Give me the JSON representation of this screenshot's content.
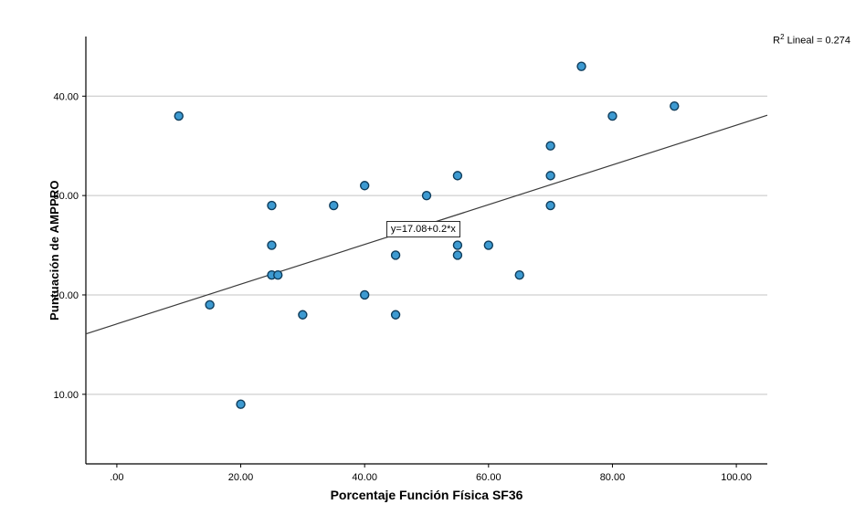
{
  "chart_data": {
    "type": "scatter",
    "title": "",
    "xlabel": "Porcentaje Función Física SF36",
    "ylabel": "Puntuación de AMPPRO",
    "xlim": [
      -5,
      105
    ],
    "ylim": [
      3,
      46
    ],
    "grid": "horizontal",
    "legend": "none",
    "x_ticks": [
      {
        "value": 0,
        "label": ".00"
      },
      {
        "value": 20,
        "label": "20.00"
      },
      {
        "value": 40,
        "label": "40.00"
      },
      {
        "value": 60,
        "label": "60.00"
      },
      {
        "value": 80,
        "label": "80.00"
      },
      {
        "value": 100,
        "label": "100.00"
      }
    ],
    "y_ticks": [
      {
        "value": 10,
        "label": "10.00"
      },
      {
        "value": 20,
        "label": "20.00"
      },
      {
        "value": 30,
        "label": "30.00"
      },
      {
        "value": 40,
        "label": "40.00"
      }
    ],
    "points": [
      [
        10,
        38
      ],
      [
        15,
        19
      ],
      [
        20,
        9
      ],
      [
        25,
        29
      ],
      [
        25,
        25
      ],
      [
        25,
        22
      ],
      [
        26,
        22
      ],
      [
        30,
        18
      ],
      [
        35,
        29
      ],
      [
        40,
        31
      ],
      [
        40,
        20
      ],
      [
        45,
        24
      ],
      [
        45,
        18
      ],
      [
        50,
        30
      ],
      [
        55,
        32
      ],
      [
        55,
        25
      ],
      [
        55,
        24
      ],
      [
        60,
        25
      ],
      [
        65,
        22
      ],
      [
        70,
        35
      ],
      [
        70,
        32
      ],
      [
        70,
        29
      ],
      [
        75,
        43
      ],
      [
        80,
        38
      ],
      [
        90,
        39
      ]
    ],
    "regression": {
      "intercept": 17.08,
      "slope": 0.2
    },
    "equation_label": "y=17.08+0.2*x",
    "equation_anchor": {
      "x": 43.5,
      "y": 26.6
    },
    "r_squared": 0.274
  },
  "annotations": {
    "r2_prefix": "R",
    "r2_sup": "2",
    "r2_rest": " Lineal = 0.274"
  },
  "colors": {
    "marker_fill": "#3d9ad1",
    "marker_stroke": "#0f3d5c",
    "grid": "#c4c4c4",
    "axis": "#000000",
    "regression_line": "#3a3a3a"
  }
}
